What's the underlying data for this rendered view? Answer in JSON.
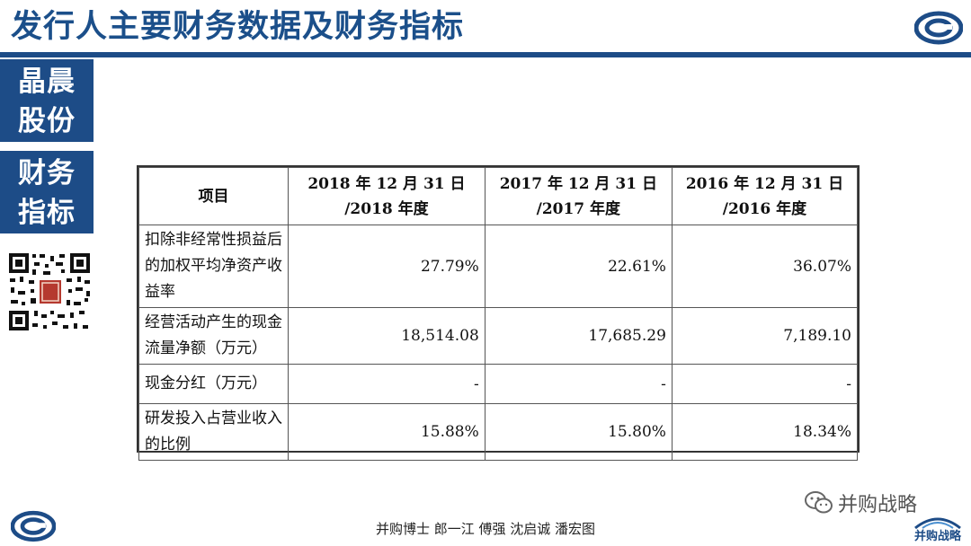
{
  "header": {
    "title": "发行人主要财务数据及财务指标"
  },
  "sidebar": {
    "block1": [
      "晶晨",
      "股份"
    ],
    "block2": [
      "财务",
      "指标"
    ]
  },
  "table": {
    "headers": [
      [
        "项目"
      ],
      [
        "2018 年 12 月 31 日",
        "/2018 年度"
      ],
      [
        "2017 年 12 月 31 日",
        "/2017 年度"
      ],
      [
        "2016 年 12 月 31 日",
        "/2016 年度"
      ]
    ],
    "rows": [
      {
        "item": [
          "扣除非经常性损益后",
          "的加权平均净资产收",
          "益率"
        ],
        "values": [
          "27.79%",
          "22.61%",
          "36.07%"
        ]
      },
      {
        "item": [
          "经营活动产生的现金",
          "流量净额（万元）"
        ],
        "values": [
          "18,514.08",
          "17,685.29",
          "7,189.10"
        ]
      },
      {
        "item": [
          "现金分红（万元）"
        ],
        "values": [
          "-",
          "-",
          "-"
        ]
      },
      {
        "item": [
          "研发投入占营业收入",
          "的比例"
        ],
        "values": [
          "15.88%",
          "15.80%",
          "18.34%"
        ]
      }
    ]
  },
  "footer": {
    "text": "并购博士 郎一江 傅强 沈启诚 潘宏图"
  },
  "watermark": {
    "text": "并购战略",
    "logo_text": "并购战略"
  },
  "colors": {
    "brand": "#1d4c87",
    "title": "#1b4f8a"
  }
}
